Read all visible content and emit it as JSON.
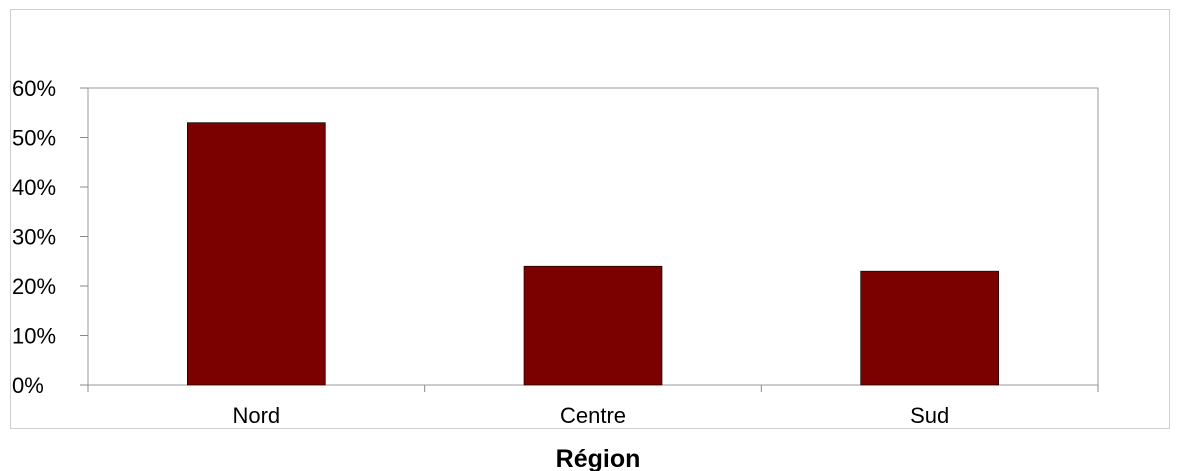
{
  "chart_data": {
    "type": "bar",
    "categories": [
      "Nord",
      "Centre",
      "Sud"
    ],
    "values": [
      53,
      24,
      23
    ],
    "unit": "%",
    "xlabel": "Région",
    "ylabel": "",
    "ylim": [
      0,
      60
    ],
    "yticks": [
      "0%",
      "10%",
      "20%",
      "30%",
      "40%",
      "50%",
      "60%"
    ],
    "grid": false,
    "legend": "none",
    "bar_color": "#7b0000"
  }
}
